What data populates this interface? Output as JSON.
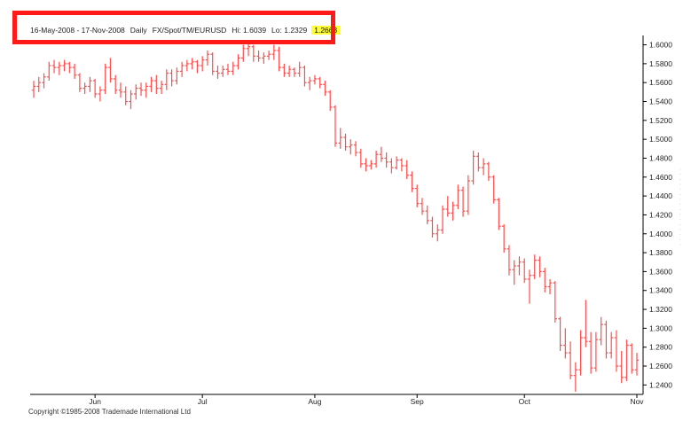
{
  "header": {
    "range": "16-May-2008 - 17-Nov-2008",
    "period": "Daily",
    "symbol": "FX/Spot/TM/EURUSD",
    "hi": "Hi: 1.6039",
    "lo": "Lo: 1.2329",
    "last": "1.2663"
  },
  "footer": {
    "copyright": "Copyright ©1985-2008 Trademade International Ltd"
  },
  "colors": {
    "bars": "#ff4d4d",
    "annotation": "#ff1a1a",
    "last_highlight": "#ffff33",
    "axis": "#000000"
  },
  "chart_data": {
    "type": "bar",
    "ohlc": true,
    "title": "",
    "xlabel": "",
    "ylabel": "",
    "ylim": [
      1.23,
      1.6099
    ],
    "y_ticks": [
      1.24,
      1.26,
      1.28,
      1.3,
      1.32,
      1.34,
      1.36,
      1.38,
      1.4,
      1.42,
      1.44,
      1.46,
      1.48,
      1.5,
      1.52,
      1.54,
      1.56,
      1.58,
      1.6
    ],
    "y_tick_labels": [
      "1.2400",
      "1.2600",
      "1.2800",
      "1.3000",
      "1.3200",
      "1.3400",
      "1.3600",
      "1.3800",
      "1.4000",
      "1.4200",
      "1.4400",
      "1.4600",
      "1.4800",
      "1.5000",
      "1.5200",
      "1.5400",
      "1.5600",
      "1.5800",
      "1.6000"
    ],
    "x_tick_labels": [
      {
        "label": "Jun",
        "index": 12
      },
      {
        "label": "Jul",
        "index": 33
      },
      {
        "label": "Aug",
        "index": 55
      },
      {
        "label": "Sep",
        "index": 75
      },
      {
        "label": "Oct",
        "index": 96
      },
      {
        "label": "Nov",
        "index": 118
      }
    ],
    "grid": false,
    "series": [
      {
        "values": [
          {
            "o": 1.552,
            "h": 1.562,
            "l": 1.544,
            "c": 1.556
          },
          {
            "o": 1.556,
            "h": 1.566,
            "l": 1.55,
            "c": 1.56
          },
          {
            "o": 1.56,
            "h": 1.57,
            "l": 1.554,
            "c": 1.566
          },
          {
            "o": 1.566,
            "h": 1.582,
            "l": 1.562,
            "c": 1.578
          },
          {
            "o": 1.578,
            "h": 1.584,
            "l": 1.57,
            "c": 1.576
          },
          {
            "o": 1.576,
            "h": 1.582,
            "l": 1.568,
            "c": 1.578
          },
          {
            "o": 1.578,
            "h": 1.584,
            "l": 1.572,
            "c": 1.58
          },
          {
            "o": 1.58,
            "h": 1.582,
            "l": 1.57,
            "c": 1.576
          },
          {
            "o": 1.576,
            "h": 1.58,
            "l": 1.564,
            "c": 1.568
          },
          {
            "o": 1.568,
            "h": 1.57,
            "l": 1.55,
            "c": 1.554
          },
          {
            "o": 1.554,
            "h": 1.56,
            "l": 1.548,
            "c": 1.556
          },
          {
            "o": 1.556,
            "h": 1.566,
            "l": 1.55,
            "c": 1.562
          },
          {
            "o": 1.562,
            "h": 1.564,
            "l": 1.544,
            "c": 1.548
          },
          {
            "o": 1.548,
            "h": 1.556,
            "l": 1.54,
            "c": 1.552
          },
          {
            "o": 1.552,
            "h": 1.58,
            "l": 1.548,
            "c": 1.576
          },
          {
            "o": 1.576,
            "h": 1.586,
            "l": 1.56,
            "c": 1.564
          },
          {
            "o": 1.564,
            "h": 1.568,
            "l": 1.548,
            "c": 1.552
          },
          {
            "o": 1.552,
            "h": 1.56,
            "l": 1.544,
            "c": 1.55
          },
          {
            "o": 1.55,
            "h": 1.556,
            "l": 1.536,
            "c": 1.54
          },
          {
            "o": 1.54,
            "h": 1.552,
            "l": 1.532,
            "c": 1.548
          },
          {
            "o": 1.548,
            "h": 1.558,
            "l": 1.542,
            "c": 1.554
          },
          {
            "o": 1.554,
            "h": 1.56,
            "l": 1.546,
            "c": 1.552
          },
          {
            "o": 1.552,
            "h": 1.56,
            "l": 1.544,
            "c": 1.556
          },
          {
            "o": 1.556,
            "h": 1.566,
            "l": 1.55,
            "c": 1.562
          },
          {
            "o": 1.562,
            "h": 1.568,
            "l": 1.548,
            "c": 1.554
          },
          {
            "o": 1.554,
            "h": 1.562,
            "l": 1.548,
            "c": 1.558
          },
          {
            "o": 1.558,
            "h": 1.574,
            "l": 1.552,
            "c": 1.57
          },
          {
            "o": 1.57,
            "h": 1.574,
            "l": 1.556,
            "c": 1.562
          },
          {
            "o": 1.562,
            "h": 1.576,
            "l": 1.558,
            "c": 1.572
          },
          {
            "o": 1.572,
            "h": 1.582,
            "l": 1.566,
            "c": 1.578
          },
          {
            "o": 1.578,
            "h": 1.584,
            "l": 1.572,
            "c": 1.58
          },
          {
            "o": 1.58,
            "h": 1.586,
            "l": 1.574,
            "c": 1.582
          },
          {
            "o": 1.582,
            "h": 1.584,
            "l": 1.57,
            "c": 1.578
          },
          {
            "o": 1.578,
            "h": 1.588,
            "l": 1.572,
            "c": 1.584
          },
          {
            "o": 1.584,
            "h": 1.594,
            "l": 1.578,
            "c": 1.59
          },
          {
            "o": 1.59,
            "h": 1.592,
            "l": 1.568,
            "c": 1.572
          },
          {
            "o": 1.572,
            "h": 1.578,
            "l": 1.564,
            "c": 1.57
          },
          {
            "o": 1.57,
            "h": 1.578,
            "l": 1.566,
            "c": 1.574
          },
          {
            "o": 1.574,
            "h": 1.58,
            "l": 1.568,
            "c": 1.572
          },
          {
            "o": 1.572,
            "h": 1.582,
            "l": 1.568,
            "c": 1.578
          },
          {
            "o": 1.578,
            "h": 1.59,
            "l": 1.574,
            "c": 1.586
          },
          {
            "o": 1.586,
            "h": 1.6,
            "l": 1.582,
            "c": 1.596
          },
          {
            "o": 1.596,
            "h": 1.6039,
            "l": 1.588,
            "c": 1.598
          },
          {
            "o": 1.598,
            "h": 1.6,
            "l": 1.582,
            "c": 1.588
          },
          {
            "o": 1.588,
            "h": 1.594,
            "l": 1.582,
            "c": 1.586
          },
          {
            "o": 1.586,
            "h": 1.592,
            "l": 1.58,
            "c": 1.588
          },
          {
            "o": 1.588,
            "h": 1.594,
            "l": 1.584,
            "c": 1.59
          },
          {
            "o": 1.59,
            "h": 1.6,
            "l": 1.584,
            "c": 1.594
          },
          {
            "o": 1.594,
            "h": 1.598,
            "l": 1.572,
            "c": 1.576
          },
          {
            "o": 1.576,
            "h": 1.58,
            "l": 1.566,
            "c": 1.57
          },
          {
            "o": 1.57,
            "h": 1.578,
            "l": 1.566,
            "c": 1.574
          },
          {
            "o": 1.574,
            "h": 1.576,
            "l": 1.566,
            "c": 1.57
          },
          {
            "o": 1.57,
            "h": 1.582,
            "l": 1.566,
            "c": 1.576
          },
          {
            "o": 1.576,
            "h": 1.578,
            "l": 1.556,
            "c": 1.56
          },
          {
            "o": 1.56,
            "h": 1.566,
            "l": 1.552,
            "c": 1.562
          },
          {
            "o": 1.562,
            "h": 1.568,
            "l": 1.558,
            "c": 1.564
          },
          {
            "o": 1.564,
            "h": 1.566,
            "l": 1.554,
            "c": 1.558
          },
          {
            "o": 1.558,
            "h": 1.562,
            "l": 1.546,
            "c": 1.55
          },
          {
            "o": 1.55,
            "h": 1.552,
            "l": 1.53,
            "c": 1.534
          },
          {
            "o": 1.534,
            "h": 1.536,
            "l": 1.492,
            "c": 1.496
          },
          {
            "o": 1.496,
            "h": 1.512,
            "l": 1.49,
            "c": 1.502
          },
          {
            "o": 1.502,
            "h": 1.506,
            "l": 1.488,
            "c": 1.492
          },
          {
            "o": 1.492,
            "h": 1.5,
            "l": 1.484,
            "c": 1.494
          },
          {
            "o": 1.494,
            "h": 1.498,
            "l": 1.482,
            "c": 1.486
          },
          {
            "o": 1.486,
            "h": 1.49,
            "l": 1.47,
            "c": 1.474
          },
          {
            "o": 1.474,
            "h": 1.48,
            "l": 1.466,
            "c": 1.472
          },
          {
            "o": 1.472,
            "h": 1.478,
            "l": 1.468,
            "c": 1.474
          },
          {
            "o": 1.474,
            "h": 1.488,
            "l": 1.47,
            "c": 1.484
          },
          {
            "o": 1.484,
            "h": 1.492,
            "l": 1.476,
            "c": 1.48
          },
          {
            "o": 1.48,
            "h": 1.486,
            "l": 1.47,
            "c": 1.476
          },
          {
            "o": 1.476,
            "h": 1.48,
            "l": 1.464,
            "c": 1.47
          },
          {
            "o": 1.47,
            "h": 1.482,
            "l": 1.468,
            "c": 1.478
          },
          {
            "o": 1.478,
            "h": 1.48,
            "l": 1.466,
            "c": 1.472
          },
          {
            "o": 1.472,
            "h": 1.478,
            "l": 1.458,
            "c": 1.462
          },
          {
            "o": 1.462,
            "h": 1.466,
            "l": 1.444,
            "c": 1.448
          },
          {
            "o": 1.448,
            "h": 1.452,
            "l": 1.428,
            "c": 1.432
          },
          {
            "o": 1.432,
            "h": 1.438,
            "l": 1.42,
            "c": 1.424
          },
          {
            "o": 1.424,
            "h": 1.43,
            "l": 1.41,
            "c": 1.414
          },
          {
            "o": 1.414,
            "h": 1.418,
            "l": 1.396,
            "c": 1.4
          },
          {
            "o": 1.4,
            "h": 1.41,
            "l": 1.392,
            "c": 1.404
          },
          {
            "o": 1.404,
            "h": 1.43,
            "l": 1.4,
            "c": 1.426
          },
          {
            "o": 1.426,
            "h": 1.44,
            "l": 1.418,
            "c": 1.422
          },
          {
            "o": 1.422,
            "h": 1.434,
            "l": 1.414,
            "c": 1.43
          },
          {
            "o": 1.43,
            "h": 1.452,
            "l": 1.426,
            "c": 1.446
          },
          {
            "o": 1.446,
            "h": 1.45,
            "l": 1.418,
            "c": 1.424
          },
          {
            "o": 1.424,
            "h": 1.462,
            "l": 1.42,
            "c": 1.456
          },
          {
            "o": 1.456,
            "h": 1.488,
            "l": 1.452,
            "c": 1.482
          },
          {
            "o": 1.482,
            "h": 1.486,
            "l": 1.466,
            "c": 1.47
          },
          {
            "o": 1.47,
            "h": 1.48,
            "l": 1.462,
            "c": 1.474
          },
          {
            "o": 1.474,
            "h": 1.476,
            "l": 1.456,
            "c": 1.46
          },
          {
            "o": 1.46,
            "h": 1.462,
            "l": 1.432,
            "c": 1.436
          },
          {
            "o": 1.436,
            "h": 1.438,
            "l": 1.404,
            "c": 1.408
          },
          {
            "o": 1.408,
            "h": 1.41,
            "l": 1.38,
            "c": 1.384
          },
          {
            "o": 1.384,
            "h": 1.388,
            "l": 1.356,
            "c": 1.362
          },
          {
            "o": 1.362,
            "h": 1.372,
            "l": 1.346,
            "c": 1.366
          },
          {
            "o": 1.366,
            "h": 1.376,
            "l": 1.356,
            "c": 1.37
          },
          {
            "o": 1.37,
            "h": 1.374,
            "l": 1.348,
            "c": 1.352
          },
          {
            "o": 1.352,
            "h": 1.362,
            "l": 1.326,
            "c": 1.356
          },
          {
            "o": 1.356,
            "h": 1.378,
            "l": 1.352,
            "c": 1.372
          },
          {
            "o": 1.372,
            "h": 1.376,
            "l": 1.354,
            "c": 1.36
          },
          {
            "o": 1.36,
            "h": 1.364,
            "l": 1.338,
            "c": 1.344
          },
          {
            "o": 1.344,
            "h": 1.352,
            "l": 1.336,
            "c": 1.348
          },
          {
            "o": 1.348,
            "h": 1.35,
            "l": 1.306,
            "c": 1.31
          },
          {
            "o": 1.31,
            "h": 1.312,
            "l": 1.276,
            "c": 1.282
          },
          {
            "o": 1.282,
            "h": 1.3,
            "l": 1.268,
            "c": 1.274
          },
          {
            "o": 1.274,
            "h": 1.286,
            "l": 1.246,
            "c": 1.25
          },
          {
            "o": 1.25,
            "h": 1.264,
            "l": 1.2329,
            "c": 1.256
          },
          {
            "o": 1.256,
            "h": 1.298,
            "l": 1.25,
            "c": 1.29
          },
          {
            "o": 1.29,
            "h": 1.33,
            "l": 1.28,
            "c": 1.286
          },
          {
            "o": 1.286,
            "h": 1.296,
            "l": 1.252,
            "c": 1.258
          },
          {
            "o": 1.258,
            "h": 1.296,
            "l": 1.254,
            "c": 1.288
          },
          {
            "o": 1.288,
            "h": 1.312,
            "l": 1.282,
            "c": 1.304
          },
          {
            "o": 1.304,
            "h": 1.308,
            "l": 1.268,
            "c": 1.274
          },
          {
            "o": 1.274,
            "h": 1.296,
            "l": 1.268,
            "c": 1.29
          },
          {
            "o": 1.29,
            "h": 1.298,
            "l": 1.254,
            "c": 1.26
          },
          {
            "o": 1.26,
            "h": 1.276,
            "l": 1.242,
            "c": 1.248
          },
          {
            "o": 1.248,
            "h": 1.288,
            "l": 1.244,
            "c": 1.282
          },
          {
            "o": 1.282,
            "h": 1.284,
            "l": 1.252,
            "c": 1.256
          },
          {
            "o": 1.256,
            "h": 1.274,
            "l": 1.25,
            "c": 1.2663
          }
        ]
      }
    ]
  }
}
